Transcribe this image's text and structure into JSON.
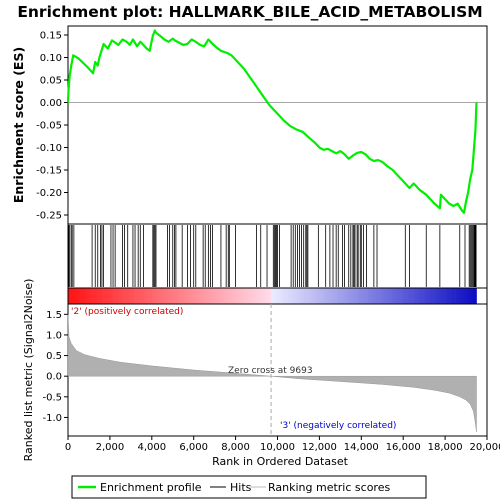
{
  "chart_data": {
    "type": "line",
    "title": "Enrichment plot: HALLMARK_BILE_ACID_METABOLISM",
    "ylabel_top": "Enrichment score (ES)",
    "ylabel_bottom": "Ranked list metric (Signal2Noise)",
    "xlabel": "Rank in Ordered Dataset",
    "xlim": [
      0,
      20000
    ],
    "es_ylim": [
      -0.27,
      0.17
    ],
    "metric_ylim": [
      -1.45,
      1.75
    ],
    "x_ticks": [
      0,
      2000,
      4000,
      6000,
      8000,
      10000,
      12000,
      14000,
      16000,
      18000,
      20000
    ],
    "x_tick_labels": [
      "0",
      "2,000",
      "4,000",
      "6,000",
      "8,000",
      "10,000",
      "12,000",
      "14,000",
      "16,000",
      "18,000",
      "20,000"
    ],
    "es_ticks": [
      0.15,
      0.1,
      0.05,
      0.0,
      -0.05,
      -0.1,
      -0.15,
      -0.2,
      -0.25
    ],
    "es_tick_labels": [
      "0.15",
      "0.10",
      "0.05",
      "0.00",
      "-0.05",
      "-0.10",
      "-0.15",
      "-0.20",
      "-0.25"
    ],
    "metric_ticks": [
      1.5,
      1.0,
      0.5,
      0.0,
      -0.5,
      -1.0
    ],
    "metric_tick_labels": [
      "1.5",
      "1.0",
      "0.5",
      "0.0",
      "-0.5",
      "-1.0"
    ],
    "zero_cross_label": "Zero cross at 9693",
    "zero_cross_rank": 9693,
    "total_genes": 19500,
    "pos_label": "'2' (positively correlated)",
    "neg_label": "'3' (negatively correlated)",
    "es_curve": {
      "x": [
        0,
        30,
        80,
        150,
        250,
        500,
        900,
        1200,
        1300,
        1420,
        1500,
        1600,
        1700,
        1900,
        2100,
        2250,
        2400,
        2600,
        2800,
        2950,
        3100,
        3300,
        3450,
        3600,
        3750,
        3900,
        4050,
        4150,
        4200,
        4400,
        4600,
        4800,
        5000,
        5100,
        5300,
        5500,
        5700,
        5900,
        6100,
        6300,
        6500,
        6700,
        6900,
        7100,
        7300,
        7600,
        7800,
        8100,
        8400,
        8700,
        9000,
        9300,
        9600,
        9800,
        10000,
        10300,
        10600,
        10900,
        11200,
        11500,
        11800,
        12000,
        12200,
        12400,
        12600,
        12800,
        13000,
        13200,
        13400,
        13600,
        13800,
        14000,
        14200,
        14400,
        14600,
        14800,
        15000,
        15200,
        15500,
        15800,
        16100,
        16300,
        16500,
        16800,
        17100,
        17300,
        17500,
        17750,
        17800,
        18000,
        18200,
        18400,
        18600,
        18800,
        18900,
        19000,
        19100,
        19200,
        19300,
        19350,
        19400,
        19450,
        19480,
        19500
      ],
      "y": [
        0.0,
        0.03,
        0.06,
        0.08,
        0.105,
        0.098,
        0.08,
        0.065,
        0.09,
        0.082,
        0.1,
        0.115,
        0.13,
        0.12,
        0.138,
        0.133,
        0.128,
        0.14,
        0.135,
        0.128,
        0.14,
        0.125,
        0.135,
        0.128,
        0.12,
        0.115,
        0.148,
        0.16,
        0.155,
        0.148,
        0.14,
        0.135,
        0.142,
        0.138,
        0.133,
        0.128,
        0.13,
        0.14,
        0.135,
        0.128,
        0.125,
        0.14,
        0.13,
        0.122,
        0.115,
        0.11,
        0.105,
        0.09,
        0.075,
        0.055,
        0.035,
        0.015,
        -0.005,
        -0.015,
        -0.025,
        -0.04,
        -0.052,
        -0.06,
        -0.065,
        -0.078,
        -0.09,
        -0.1,
        -0.105,
        -0.103,
        -0.108,
        -0.113,
        -0.108,
        -0.115,
        -0.125,
        -0.118,
        -0.112,
        -0.11,
        -0.115,
        -0.125,
        -0.13,
        -0.128,
        -0.132,
        -0.14,
        -0.15,
        -0.165,
        -0.18,
        -0.19,
        -0.18,
        -0.195,
        -0.205,
        -0.215,
        -0.225,
        -0.235,
        -0.205,
        -0.215,
        -0.225,
        -0.23,
        -0.225,
        -0.24,
        -0.245,
        -0.22,
        -0.2,
        -0.17,
        -0.15,
        -0.12,
        -0.09,
        -0.06,
        -0.02,
        0.0
      ]
    },
    "hits": [
      30,
      80,
      150,
      200,
      280,
      1150,
      1300,
      1420,
      1550,
      1620,
      1700,
      2050,
      2150,
      2250,
      2600,
      2700,
      2850,
      3100,
      3200,
      3350,
      3450,
      3600,
      4050,
      4100,
      4150,
      4200,
      4750,
      4850,
      5000,
      5080,
      5150,
      5450,
      5700,
      5850,
      6000,
      6100,
      6450,
      6550,
      6700,
      6800,
      6900,
      7300,
      7550,
      7650,
      7700,
      8000,
      9000,
      9200,
      9500,
      9800,
      9850,
      9900,
      9950,
      10000,
      10100,
      10650,
      10750,
      10850,
      10950,
      11050,
      11150,
      11250,
      11350,
      11400,
      11450,
      11950,
      12300,
      12500,
      12650,
      12800,
      12900,
      13100,
      13200,
      13400,
      13500,
      13600,
      13650,
      13700,
      13800,
      13850,
      13950,
      14000,
      14100,
      14250,
      14600,
      14750,
      16100,
      16300,
      17100,
      17750,
      18700,
      18950,
      19150,
      19200,
      19250,
      19300,
      19350,
      19400,
      19420,
      19440,
      19460,
      19480
    ],
    "metric_curve": {
      "x": [
        0,
        50,
        150,
        400,
        800,
        1500,
        2500,
        4000,
        6000,
        8000,
        9693,
        11000,
        13000,
        15000,
        16500,
        17500,
        18200,
        18700,
        19000,
        19200,
        19350,
        19420,
        19500
      ],
      "y": [
        1.5,
        0.95,
        0.8,
        0.62,
        0.52,
        0.43,
        0.34,
        0.25,
        0.15,
        0.07,
        0.0,
        -0.06,
        -0.13,
        -0.2,
        -0.27,
        -0.34,
        -0.41,
        -0.5,
        -0.58,
        -0.68,
        -0.85,
        -1.05,
        -1.35
      ]
    }
  },
  "legend": {
    "items": [
      {
        "label": "Enrichment profile",
        "color": "#00ee00"
      },
      {
        "label": "Hits",
        "color": "#000000"
      },
      {
        "label": "Ranking metric scores",
        "color": "#bbbbbb"
      }
    ]
  },
  "colors": {
    "es_line": "#00ee00",
    "hit": "#000000",
    "metric_fill": "#b0b0b0",
    "zero_line": "#b0b0b0",
    "pos_text": "#cc0000",
    "neg_text": "#0000cc",
    "ann_text": "#333333"
  }
}
